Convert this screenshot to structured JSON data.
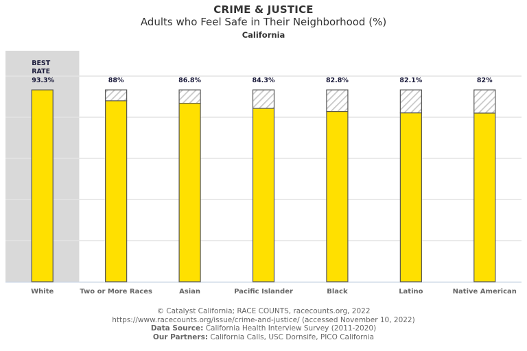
{
  "header": {
    "category": "CRIME & JUSTICE",
    "title": "Adults who Feel Safe in Their Neighborhood (%)",
    "subtitle": "California"
  },
  "best_rate_label": [
    "BEST",
    "RATE"
  ],
  "colors": {
    "bar": "#FFE000",
    "bar_stroke": "#555555",
    "highlight_bg": "#D9D9D9",
    "gridline": "#E4E4E4",
    "baseline": "#C8D4E4",
    "label_text": "#1A1A3A",
    "axis_text": "#666666",
    "hatch": "#C8C8C8"
  },
  "credits": {
    "line1": "© Catalyst California; RACE COUNTS, racecounts.org, 2022",
    "line2": "https://www.racecounts.org/issue/crime-and-justice/ (accessed November 10, 2022)",
    "line3_label": "Data Source:",
    "line3_value": " California Health Interview Survey (2011-2020)",
    "line4_label": "Our Partners:",
    "line4_value": " California Calls, USC Dornsife, PICO California"
  },
  "chart_data": {
    "type": "bar",
    "title": "Adults who Feel Safe in Their Neighborhood (%)",
    "subtitle": "California",
    "categories": [
      "White",
      "Two or More Races",
      "Asian",
      "Pacific Islander",
      "Black",
      "Latino",
      "Native American"
    ],
    "values": [
      93.3,
      88,
      86.8,
      84.3,
      82.8,
      82.1,
      82
    ],
    "value_labels": [
      "93.3%",
      "88%",
      "86.8%",
      "84.3%",
      "82.8%",
      "82.1%",
      "82%"
    ],
    "best_rate": {
      "category": "White",
      "value": 93.3
    },
    "gap_to_best_hatched": true,
    "xlabel": "",
    "ylabel": "",
    "ylim": [
      0,
      100
    ],
    "yticks": [
      0,
      20,
      40,
      60,
      80,
      100
    ],
    "ytick_labels_visible": false,
    "grid": true,
    "legend": null
  }
}
